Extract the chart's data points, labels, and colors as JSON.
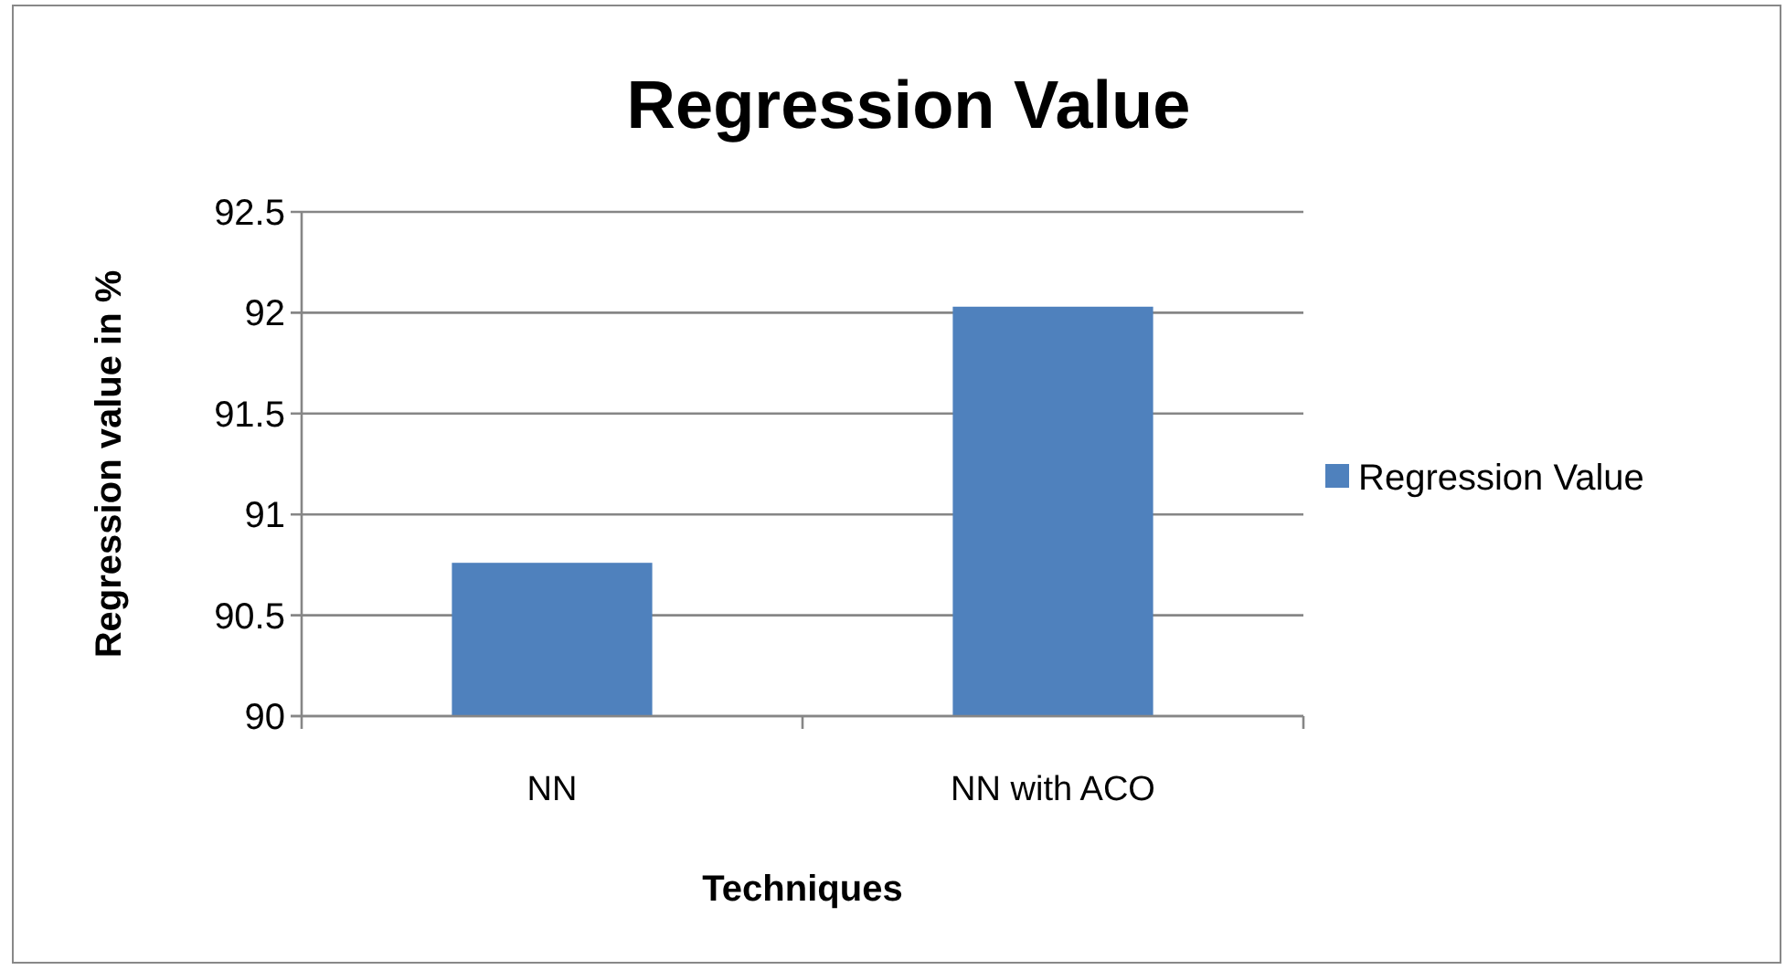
{
  "chart_data": {
    "type": "bar",
    "title": "Regression Value",
    "xlabel": "Techniques",
    "ylabel": "Regression value in %",
    "categories": [
      "NN",
      "NN with ACO"
    ],
    "series": [
      {
        "name": "Regression Value",
        "color": "#4f81bd",
        "values": [
          90.76,
          92.03
        ]
      }
    ],
    "ylim": [
      90,
      92.5
    ],
    "yticks": [
      90,
      90.5,
      91,
      91.5,
      92,
      92.5
    ],
    "grid": "y",
    "legend": "right"
  }
}
